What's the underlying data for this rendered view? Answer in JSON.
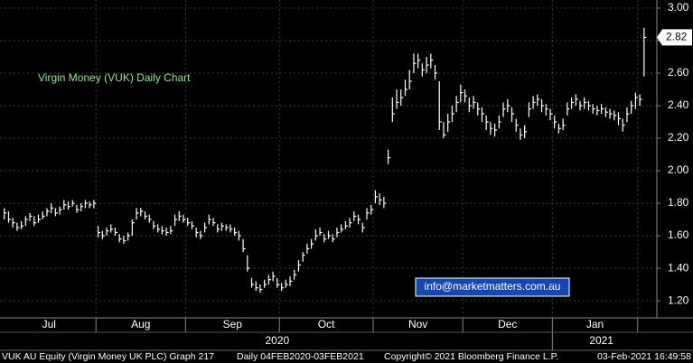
{
  "chart_data": {
    "type": "ohlc",
    "annotation": "Virgin Money (VUK) Daily Chart",
    "watermark": "info@marketmatters.com.au",
    "footer": [
      "VUK AU Equity (Virgin Money UK PLC) Graph 217",
      "Daily 04FEB2020-03FEB2021",
      "Copyright© 2021 Bloomberg Finance L.P.",
      "03-Feb-2021 16:49:58"
    ],
    "color": "#ffffff",
    "ylim": [
      1.095,
      3.05
    ],
    "yticks": [
      {
        "value": 1.2,
        "label": "1.20"
      },
      {
        "value": 1.4,
        "label": "1.40"
      },
      {
        "value": 1.6,
        "label": "1.60"
      },
      {
        "value": 1.8,
        "label": "1.80"
      },
      {
        "value": 2.0,
        "label": "2.00"
      },
      {
        "value": 2.2,
        "label": "2.20"
      },
      {
        "value": 2.4,
        "label": "2.40"
      },
      {
        "value": 2.6,
        "label": "2.60"
      },
      {
        "value": 2.8,
        "label": "2.80"
      },
      {
        "value": 3.0,
        "label": "3.00"
      }
    ],
    "xlim": [
      -1,
      153
    ],
    "xticks": [
      {
        "value": 10.5,
        "label": "Jul"
      },
      {
        "value": 32,
        "label": "Aug"
      },
      {
        "value": 53.5,
        "label": "Sep"
      },
      {
        "value": 75.5,
        "label": "Oct"
      },
      {
        "value": 97,
        "label": "Nov"
      },
      {
        "value": 118,
        "label": "Dec"
      },
      {
        "value": 138.5,
        "label": "Jan"
      }
    ],
    "xgrid": [
      21.5,
      42.5,
      64.5,
      86.5,
      107.5,
      128.5,
      148.5
    ],
    "year_ticks": [
      {
        "value": 64,
        "label": "2020"
      },
      {
        "value": 140,
        "label": "2021"
      }
    ],
    "year_boundary": 128.5,
    "grid": true,
    "bars": [
      [
        1.77,
        1.7,
        1.74
      ],
      [
        1.75,
        1.68,
        1.7
      ],
      [
        1.71,
        1.65,
        1.68
      ],
      [
        1.68,
        1.63,
        1.65
      ],
      [
        1.69,
        1.64,
        1.66
      ],
      [
        1.72,
        1.66,
        1.7
      ],
      [
        1.74,
        1.69,
        1.72
      ],
      [
        1.72,
        1.66,
        1.68
      ],
      [
        1.73,
        1.68,
        1.7
      ],
      [
        1.75,
        1.7,
        1.72
      ],
      [
        1.77,
        1.72,
        1.75
      ],
      [
        1.8,
        1.74,
        1.77
      ],
      [
        1.77,
        1.72,
        1.74
      ],
      [
        1.78,
        1.73,
        1.76
      ],
      [
        1.82,
        1.76,
        1.79
      ],
      [
        1.81,
        1.76,
        1.78
      ],
      [
        1.82,
        1.78,
        1.8
      ],
      [
        1.79,
        1.74,
        1.76
      ],
      [
        1.8,
        1.75,
        1.78
      ],
      [
        1.82,
        1.77,
        1.8
      ],
      [
        1.81,
        1.77,
        1.79
      ],
      [
        1.82,
        1.77,
        1.8
      ],
      [
        1.66,
        1.59,
        1.62
      ],
      [
        1.63,
        1.58,
        1.6
      ],
      [
        1.65,
        1.6,
        1.63
      ],
      [
        1.67,
        1.62,
        1.64
      ],
      [
        1.65,
        1.6,
        1.62
      ],
      [
        1.61,
        1.56,
        1.58
      ],
      [
        1.6,
        1.55,
        1.57
      ],
      [
        1.62,
        1.57,
        1.6
      ],
      [
        1.7,
        1.6,
        1.68
      ],
      [
        1.77,
        1.7,
        1.74
      ],
      [
        1.77,
        1.72,
        1.75
      ],
      [
        1.75,
        1.7,
        1.72
      ],
      [
        1.73,
        1.68,
        1.7
      ],
      [
        1.69,
        1.64,
        1.66
      ],
      [
        1.67,
        1.62,
        1.64
      ],
      [
        1.66,
        1.61,
        1.63
      ],
      [
        1.65,
        1.6,
        1.62
      ],
      [
        1.66,
        1.61,
        1.63
      ],
      [
        1.73,
        1.66,
        1.7
      ],
      [
        1.75,
        1.69,
        1.72
      ],
      [
        1.73,
        1.68,
        1.7
      ],
      [
        1.71,
        1.66,
        1.68
      ],
      [
        1.69,
        1.64,
        1.66
      ],
      [
        1.65,
        1.59,
        1.62
      ],
      [
        1.63,
        1.58,
        1.6
      ],
      [
        1.68,
        1.62,
        1.65
      ],
      [
        1.73,
        1.67,
        1.7
      ],
      [
        1.71,
        1.66,
        1.68
      ],
      [
        1.67,
        1.62,
        1.64
      ],
      [
        1.68,
        1.63,
        1.66
      ],
      [
        1.67,
        1.63,
        1.65
      ],
      [
        1.67,
        1.62,
        1.64
      ],
      [
        1.65,
        1.6,
        1.62
      ],
      [
        1.63,
        1.57,
        1.6
      ],
      [
        1.58,
        1.5,
        1.52
      ],
      [
        1.48,
        1.38,
        1.4
      ],
      [
        1.34,
        1.28,
        1.3
      ],
      [
        1.32,
        1.26,
        1.28
      ],
      [
        1.3,
        1.25,
        1.27
      ],
      [
        1.33,
        1.28,
        1.3
      ],
      [
        1.36,
        1.3,
        1.33
      ],
      [
        1.38,
        1.32,
        1.35
      ],
      [
        1.34,
        1.28,
        1.3
      ],
      [
        1.31,
        1.26,
        1.28
      ],
      [
        1.33,
        1.28,
        1.3
      ],
      [
        1.35,
        1.29,
        1.32
      ],
      [
        1.39,
        1.33,
        1.36
      ],
      [
        1.45,
        1.38,
        1.42
      ],
      [
        1.5,
        1.44,
        1.48
      ],
      [
        1.55,
        1.49,
        1.52
      ],
      [
        1.58,
        1.52,
        1.55
      ],
      [
        1.64,
        1.57,
        1.6
      ],
      [
        1.65,
        1.6,
        1.62
      ],
      [
        1.61,
        1.56,
        1.58
      ],
      [
        1.63,
        1.58,
        1.6
      ],
      [
        1.61,
        1.56,
        1.58
      ],
      [
        1.65,
        1.59,
        1.62
      ],
      [
        1.67,
        1.62,
        1.64
      ],
      [
        1.69,
        1.64,
        1.66
      ],
      [
        1.71,
        1.65,
        1.68
      ],
      [
        1.75,
        1.69,
        1.72
      ],
      [
        1.73,
        1.67,
        1.7
      ],
      [
        1.68,
        1.62,
        1.65
      ],
      [
        1.77,
        1.7,
        1.74
      ],
      [
        1.79,
        1.73,
        1.76
      ],
      [
        1.88,
        1.8,
        1.84
      ],
      [
        1.86,
        1.79,
        1.82
      ],
      [
        1.84,
        1.77,
        1.8
      ],
      [
        2.13,
        2.04,
        2.08
      ],
      [
        2.45,
        2.3,
        2.35
      ],
      [
        2.5,
        2.38,
        2.42
      ],
      [
        2.5,
        2.4,
        2.45
      ],
      [
        2.56,
        2.46,
        2.5
      ],
      [
        2.62,
        2.5,
        2.55
      ],
      [
        2.72,
        2.6,
        2.66
      ],
      [
        2.72,
        2.63,
        2.68
      ],
      [
        2.66,
        2.58,
        2.62
      ],
      [
        2.7,
        2.6,
        2.65
      ],
      [
        2.72,
        2.63,
        2.68
      ],
      [
        2.65,
        2.56,
        2.6
      ],
      [
        2.55,
        2.25,
        2.3
      ],
      [
        2.3,
        2.2,
        2.22
      ],
      [
        2.35,
        2.24,
        2.3
      ],
      [
        2.4,
        2.3,
        2.35
      ],
      [
        2.46,
        2.36,
        2.42
      ],
      [
        2.53,
        2.42,
        2.48
      ],
      [
        2.5,
        2.42,
        2.46
      ],
      [
        2.45,
        2.36,
        2.4
      ],
      [
        2.46,
        2.38,
        2.42
      ],
      [
        2.42,
        2.34,
        2.38
      ],
      [
        2.39,
        2.3,
        2.35
      ],
      [
        2.34,
        2.25,
        2.3
      ],
      [
        2.3,
        2.22,
        2.26
      ],
      [
        2.29,
        2.21,
        2.25
      ],
      [
        2.34,
        2.26,
        2.3
      ],
      [
        2.42,
        2.33,
        2.38
      ],
      [
        2.44,
        2.36,
        2.4
      ],
      [
        2.39,
        2.3,
        2.35
      ],
      [
        2.32,
        2.24,
        2.28
      ],
      [
        2.26,
        2.19,
        2.22
      ],
      [
        2.28,
        2.2,
        2.24
      ],
      [
        2.42,
        2.33,
        2.38
      ],
      [
        2.46,
        2.38,
        2.42
      ],
      [
        2.47,
        2.4,
        2.44
      ],
      [
        2.44,
        2.36,
        2.4
      ],
      [
        2.41,
        2.34,
        2.38
      ],
      [
        2.38,
        2.31,
        2.35
      ],
      [
        2.34,
        2.26,
        2.3
      ],
      [
        2.29,
        2.23,
        2.26
      ],
      [
        2.32,
        2.25,
        2.28
      ],
      [
        2.42,
        2.34,
        2.38
      ],
      [
        2.45,
        2.38,
        2.42
      ],
      [
        2.47,
        2.4,
        2.44
      ],
      [
        2.43,
        2.37,
        2.4
      ],
      [
        2.45,
        2.38,
        2.42
      ],
      [
        2.43,
        2.37,
        2.4
      ],
      [
        2.41,
        2.35,
        2.38
      ],
      [
        2.4,
        2.34,
        2.37
      ],
      [
        2.41,
        2.35,
        2.38
      ],
      [
        2.39,
        2.33,
        2.36
      ],
      [
        2.38,
        2.32,
        2.35
      ],
      [
        2.37,
        2.31,
        2.34
      ],
      [
        2.36,
        2.28,
        2.32
      ],
      [
        2.32,
        2.24,
        2.28
      ],
      [
        2.39,
        2.3,
        2.35
      ],
      [
        2.43,
        2.35,
        2.4
      ],
      [
        2.48,
        2.38,
        2.45
      ],
      [
        2.47,
        2.4,
        2.44
      ],
      [
        2.88,
        2.58,
        2.82
      ]
    ]
  }
}
